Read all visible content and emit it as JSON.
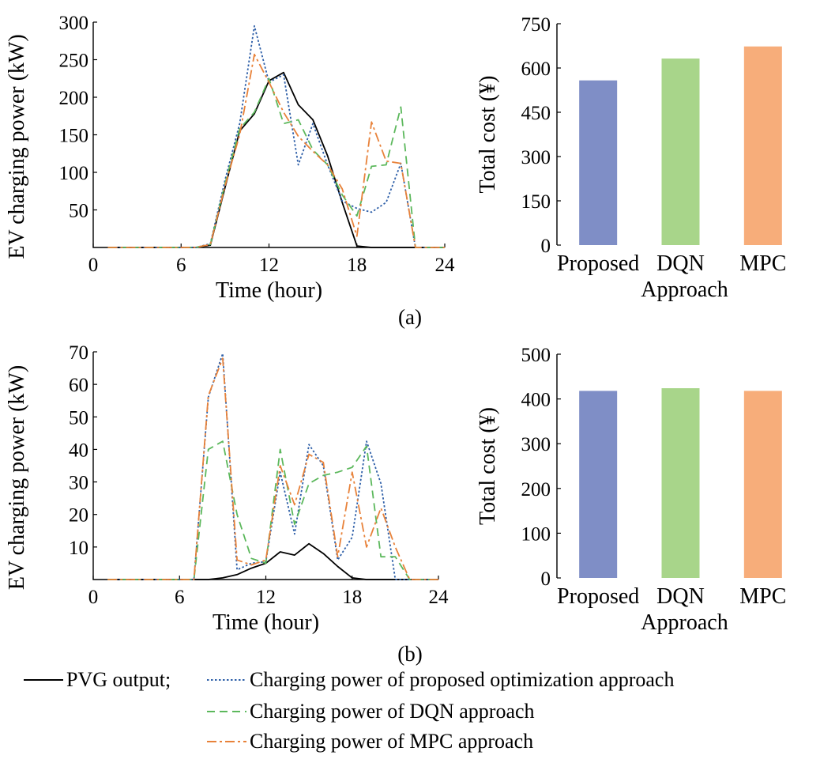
{
  "chart_data": [
    {
      "id": "a-line",
      "type": "line",
      "xlabel": "Time (hour)",
      "ylabel": "EV charging power (kW)",
      "xlim": [
        0,
        24
      ],
      "ylim": [
        0,
        300
      ],
      "xticks": [
        0,
        6,
        12,
        18,
        24
      ],
      "yticks": [
        50,
        100,
        150,
        200,
        250,
        300
      ],
      "x": [
        1,
        2,
        3,
        4,
        5,
        6,
        7,
        8,
        9,
        10,
        11,
        12,
        13,
        14,
        15,
        16,
        17,
        18,
        19,
        20,
        21,
        22,
        23,
        24
      ],
      "series": [
        {
          "key": "pvg",
          "color": "#000000",
          "dash": "none",
          "values": [
            0,
            0,
            0,
            0,
            0,
            0,
            0,
            3,
            80,
            155,
            178,
            222,
            233,
            190,
            170,
            122,
            60,
            2,
            0,
            0,
            0,
            0,
            0,
            0
          ]
        },
        {
          "key": "proposed",
          "color": "#2e5fa8",
          "dash": "2.5 2.5",
          "values": [
            0,
            0,
            0,
            0,
            0,
            0,
            0,
            5,
            90,
            165,
            295,
            220,
            230,
            110,
            165,
            110,
            62,
            52,
            47,
            60,
            112,
            0,
            0,
            0
          ]
        },
        {
          "key": "dqn",
          "color": "#5cb85c",
          "dash": "10 6",
          "values": [
            0,
            0,
            0,
            0,
            0,
            0,
            0,
            4,
            85,
            158,
            180,
            225,
            165,
            170,
            130,
            110,
            70,
            42,
            108,
            110,
            187,
            0,
            0,
            0
          ]
        },
        {
          "key": "mpc",
          "color": "#e8823a",
          "dash": "12 4 3 4",
          "values": [
            0,
            0,
            0,
            0,
            0,
            0,
            0,
            4,
            82,
            150,
            257,
            220,
            180,
            148,
            128,
            110,
            78,
            15,
            167,
            115,
            112,
            0,
            0,
            0
          ]
        }
      ]
    },
    {
      "id": "a-bar",
      "type": "bar",
      "xlabel": "Approach",
      "ylabel": "Total cost (¥)",
      "ylim": [
        0,
        750
      ],
      "yticks": [
        0,
        150,
        300,
        450,
        600,
        750
      ],
      "categories": [
        "Proposed",
        "DQN",
        "MPC"
      ],
      "values": [
        558,
        632,
        673
      ],
      "colors": [
        "#7f8ec6",
        "#a8d58a",
        "#f7ad7a"
      ]
    },
    {
      "id": "b-line",
      "type": "line",
      "xlabel": "Time (hour)",
      "ylabel": "EV charging power (kW)",
      "xlim": [
        0,
        24
      ],
      "ylim": [
        0,
        70
      ],
      "xticks": [
        0,
        6,
        12,
        18,
        24
      ],
      "yticks": [
        10,
        20,
        30,
        40,
        50,
        60,
        70
      ],
      "x": [
        1,
        2,
        3,
        4,
        5,
        6,
        7,
        8,
        9,
        10,
        11,
        12,
        13,
        14,
        15,
        16,
        17,
        18,
        19,
        20,
        21,
        22,
        23,
        24
      ],
      "series": [
        {
          "key": "pvg",
          "color": "#000000",
          "dash": "none",
          "values": [
            0,
            0,
            0,
            0,
            0,
            0,
            0,
            0,
            0.5,
            1.5,
            3.5,
            5,
            8.5,
            7.5,
            11,
            8,
            4,
            0.5,
            0,
            0,
            0,
            0,
            0,
            0
          ]
        },
        {
          "key": "proposed",
          "color": "#2e5fa8",
          "dash": "2.5 2.5",
          "values": [
            0,
            0,
            0,
            0,
            0,
            0,
            0,
            56,
            69.5,
            3,
            5,
            5.5,
            33,
            14,
            41.5,
            35,
            6,
            13,
            42.5,
            29.5,
            0,
            0,
            0,
            0
          ]
        },
        {
          "key": "dqn",
          "color": "#5cb85c",
          "dash": "10 6",
          "values": [
            0,
            0,
            0,
            0,
            0,
            0,
            0,
            40,
            42.5,
            20,
            6.5,
            5,
            40,
            17,
            29.5,
            32,
            33,
            34.5,
            41,
            7,
            7,
            0,
            0,
            0
          ]
        },
        {
          "key": "mpc",
          "color": "#e8823a",
          "dash": "12 4 3 4",
          "values": [
            0,
            0,
            0,
            0,
            0,
            0,
            0,
            56.5,
            68,
            6,
            4.5,
            6,
            35,
            23,
            38.5,
            36,
            7,
            33,
            10,
            22,
            10,
            0,
            0,
            0
          ]
        }
      ]
    },
    {
      "id": "b-bar",
      "type": "bar",
      "xlabel": "Approach",
      "ylabel": "Total cost (¥)",
      "ylim": [
        0,
        500
      ],
      "yticks": [
        0,
        100,
        200,
        300,
        400,
        500
      ],
      "categories": [
        "Proposed",
        "DQN",
        "MPC"
      ],
      "values": [
        418,
        424,
        418
      ],
      "colors": [
        "#7f8ec6",
        "#a8d58a",
        "#f7ad7a"
      ]
    }
  ],
  "panel_labels": [
    "(a)",
    "(b)"
  ],
  "legend": [
    {
      "label": "PVG output;",
      "color": "#000000",
      "dash": "none"
    },
    {
      "label": "Charging power of proposed optimization approach",
      "color": "#2e5fa8",
      "dash": "2.5 2.5"
    },
    {
      "label": "Charging power of DQN approach",
      "color": "#5cb85c",
      "dash": "10 6"
    },
    {
      "label": "Charging power of MPC approach",
      "color": "#e8823a",
      "dash": "12 4 3 4"
    }
  ]
}
